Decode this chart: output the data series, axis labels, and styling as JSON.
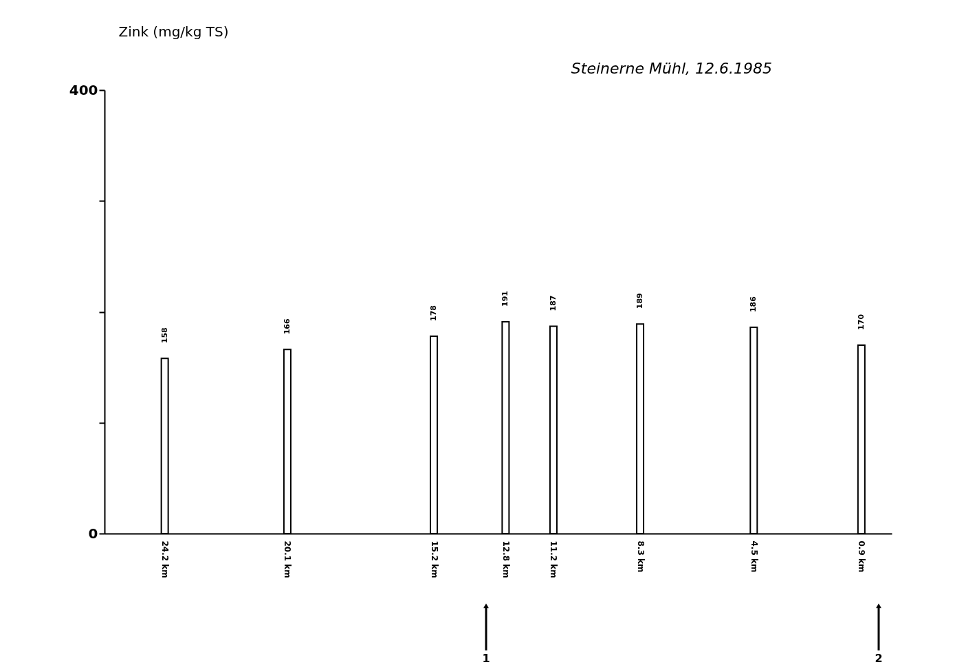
{
  "chart_data": {
    "type": "bar",
    "title": "Steinerne Mühl, 12.6.1985",
    "ylabel": "Zink (mg/kg TS)",
    "x": [
      24.2,
      20.1,
      15.2,
      12.8,
      11.2,
      8.3,
      4.5,
      0.9
    ],
    "values": [
      158,
      166,
      178,
      191,
      187,
      189,
      186,
      170
    ],
    "color": "#ffffff",
    "data_labels": true,
    "xlim": [
      26.1,
      0
    ],
    "xticks": [
      {
        "value": 24.2,
        "label": "24.2 km"
      },
      {
        "value": 20.1,
        "label": "20.1 km"
      },
      {
        "value": 15.2,
        "label": "15.2 km"
      },
      {
        "value": 12.8,
        "label": "12.8 km"
      },
      {
        "value": 11.2,
        "label": "11.2 km"
      },
      {
        "value": 8.3,
        "label": "8.3 km"
      },
      {
        "value": 4.5,
        "label": "4.5 km"
      },
      {
        "value": 0.9,
        "label": "0.9 km"
      }
    ],
    "ylim": [
      0,
      400
    ],
    "yticks": [
      0,
      {
        "value": 100,
        "label": null
      },
      {
        "value": 200,
        "label": null
      },
      {
        "value": 300,
        "label": null
      },
      400
    ],
    "annotations": [
      "1",
      "2"
    ],
    "grid": false
  }
}
